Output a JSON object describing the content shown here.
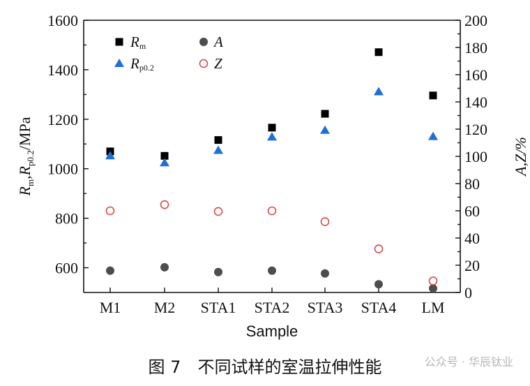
{
  "chart_data": {
    "type": "scatter",
    "xlabel": "Sample",
    "categories": [
      "M1",
      "M2",
      "STA1",
      "STA2",
      "STA3",
      "STA4",
      "LM"
    ],
    "left_axis": {
      "label": "Rm,Rp0.2/MPa",
      "label_parts": {
        "r1": "R",
        "s1": "m",
        "sep": ",",
        "r2": "R",
        "s2": "p0.2",
        "unit": "/MPa"
      },
      "ylim": [
        500,
        1600
      ],
      "ticks": [
        600,
        800,
        1000,
        1200,
        1400,
        1600
      ]
    },
    "right_axis": {
      "label": "A,Z/%",
      "ylim": [
        0,
        200
      ],
      "ticks": [
        0,
        20,
        40,
        60,
        80,
        100,
        120,
        140,
        160,
        180,
        200
      ]
    },
    "series": [
      {
        "name": "Rm",
        "name_main": "R",
        "name_sub": "m",
        "axis": "left",
        "marker": "square",
        "color": "#000000",
        "values": [
          1070,
          1052,
          1116,
          1166,
          1222,
          1471,
          1296
        ]
      },
      {
        "name": "Rp0.2",
        "name_main": "R",
        "name_sub": "p0.2",
        "axis": "left",
        "marker": "triangle",
        "color": "#1f6fd6",
        "values": [
          1052,
          1024,
          1074,
          1128,
          1155,
          1311,
          1130
        ]
      },
      {
        "name": "A",
        "name_main": "A",
        "name_sub": "",
        "axis": "right",
        "marker": "filled-circle",
        "color": "#4d4d4d",
        "values": [
          16,
          18.5,
          15,
          16,
          14,
          6,
          3
        ]
      },
      {
        "name": "Z",
        "name_main": "Z",
        "name_sub": "",
        "axis": "right",
        "marker": "open-circle",
        "color": "#d94a4a",
        "values": [
          60,
          64.5,
          59.5,
          60,
          52,
          32,
          8.5
        ]
      }
    ],
    "legend_position": "top-left",
    "grid": false
  },
  "caption": "图 7　不同试样的室温拉伸性能",
  "watermark": "公众号 · 华辰钛业"
}
